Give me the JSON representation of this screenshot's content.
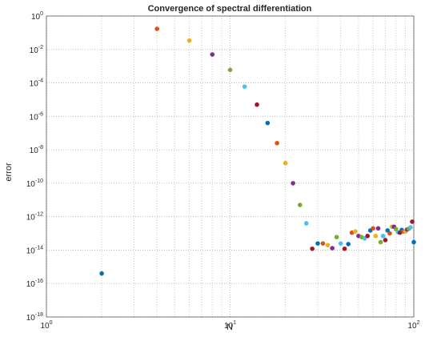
{
  "chart_data": {
    "type": "scatter",
    "title": "Convergence of spectral differentiation",
    "x_label": "N",
    "y_label": "error",
    "x": [
      2,
      4,
      6,
      8,
      10,
      12,
      14,
      16,
      18,
      20,
      22,
      24,
      26,
      28,
      30,
      32,
      34,
      36,
      38,
      40,
      42,
      44,
      46,
      48,
      50,
      52,
      54,
      56,
      58,
      60,
      62,
      64,
      66,
      68,
      70,
      72,
      74,
      76,
      78,
      80,
      82,
      84,
      86,
      88,
      90,
      92,
      94,
      96,
      98,
      100
    ],
    "values": [
      4e-16,
      0.17,
      0.034,
      0.005,
      0.0006,
      6e-05,
      5e-06,
      4e-07,
      2.5e-08,
      1.6e-09,
      1e-10,
      5e-12,
      4e-13,
      1.2e-14,
      2.5e-14,
      2.5e-14,
      2e-14,
      1.3e-14,
      6e-14,
      2.5e-14,
      1.2e-14,
      2.3e-14,
      1.1e-13,
      1.3e-13,
      7e-14,
      6e-14,
      5e-14,
      7e-14,
      1.5e-13,
      2e-13,
      7e-14,
      2e-13,
      3e-14,
      7e-14,
      4e-14,
      1.5e-13,
      1e-13,
      2.5e-13,
      2.5e-13,
      1.8e-13,
      1.2e-13,
      1.1e-13,
      1.6e-13,
      1.3e-13,
      1.3e-13,
      1.7e-13,
      1.9e-13,
      2.3e-13,
      5e-13,
      3e-14
    ],
    "colors": [
      "#0072bd",
      "#d95319",
      "#edb120",
      "#7e2f8e",
      "#77ac30",
      "#4dbeee",
      "#a2142f"
    ],
    "xlim": [
      1,
      100
    ],
    "ylim": [
      1e-18,
      1
    ],
    "xticks": [
      {
        "value": 1,
        "label": "10^0"
      },
      {
        "value": 10,
        "label": "10^1"
      },
      {
        "value": 100,
        "label": "10^2"
      }
    ],
    "yticks": [
      {
        "value": 1e-18,
        "label": "10^-18"
      },
      {
        "value": 1e-16,
        "label": "10^-16"
      },
      {
        "value": 1e-14,
        "label": "10^-14"
      },
      {
        "value": 1e-12,
        "label": "10^-12"
      },
      {
        "value": 1e-10,
        "label": "10^-10"
      },
      {
        "value": 1e-08,
        "label": "10^-8"
      },
      {
        "value": 1e-06,
        "label": "10^-6"
      },
      {
        "value": 0.0001,
        "label": "10^-4"
      },
      {
        "value": 0.01,
        "label": "10^-2"
      },
      {
        "value": 1,
        "label": "10^0"
      }
    ],
    "log_x": true,
    "log_y": true,
    "grid": true,
    "minor_grid": true
  }
}
